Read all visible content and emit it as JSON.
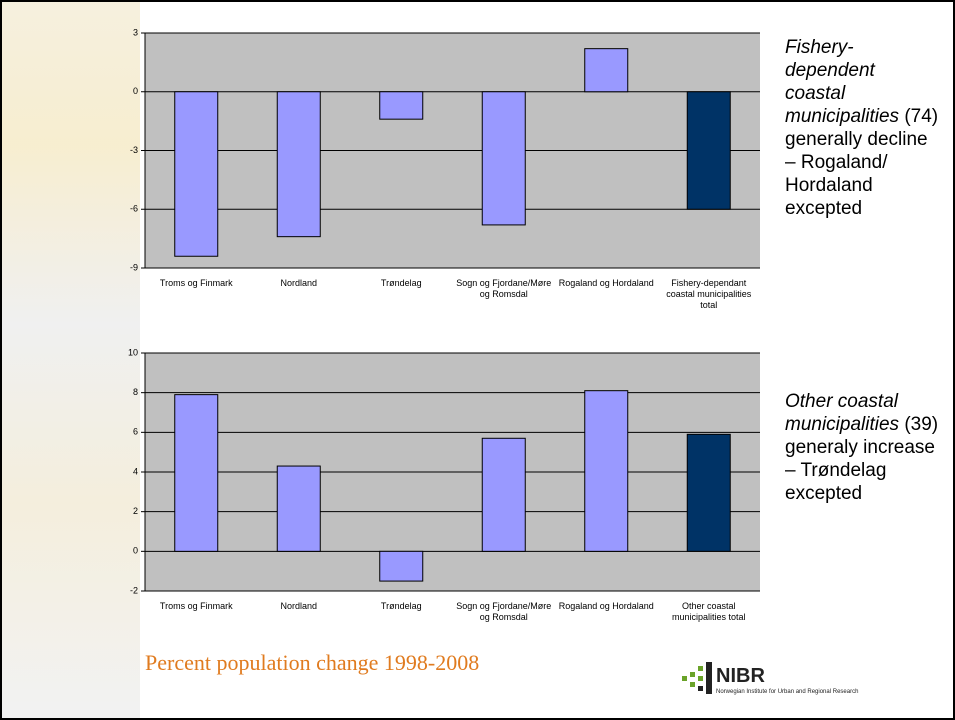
{
  "chart_data": [
    {
      "type": "bar",
      "categories": [
        "Troms og Finmark",
        "Nordland",
        "Trøndelag",
        "Sogn og Fjordane/Møre og Romsdal",
        "Rogaland og Hordaland",
        "Fishery-dependant coastal municipalities total"
      ],
      "values": [
        -8.4,
        -7.4,
        -1.4,
        -6.8,
        2.2,
        -6.0
      ],
      "colors": [
        "#9999ff",
        "#9999ff",
        "#9999ff",
        "#9999ff",
        "#9999ff",
        "#003366"
      ],
      "ylim": [
        -9,
        3
      ],
      "yticks": [
        -9,
        -6,
        -3,
        0,
        3
      ],
      "grid": true
    },
    {
      "type": "bar",
      "categories": [
        "Troms og Finmark",
        "Nordland",
        "Trøndelag",
        "Sogn og Fjordane/Møre og Romsdal",
        "Rogaland og Hordaland",
        "Other coastal municipalities total"
      ],
      "values": [
        7.9,
        4.3,
        -1.5,
        5.7,
        8.1,
        5.9
      ],
      "colors": [
        "#9999ff",
        "#9999ff",
        "#9999ff",
        "#9999ff",
        "#9999ff",
        "#003366"
      ],
      "ylim": [
        -2,
        10
      ],
      "yticks": [
        -2,
        0,
        2,
        4,
        6,
        8,
        10
      ],
      "grid": true
    }
  ],
  "notes": [
    {
      "italic": "Fishery-dependent coastal municipalities",
      "text": "(74) generally decline – Rogaland/ Hordaland excepted"
    },
    {
      "italic": "Other coastal municipalities",
      "text": "(39) generaly increase – Trøndelag excepted"
    }
  ],
  "footer": "Percent population change 1998-2008",
  "logo": {
    "name": "NIBR",
    "subtitle": "Norwegian Institute for Urban and Regional Research"
  }
}
